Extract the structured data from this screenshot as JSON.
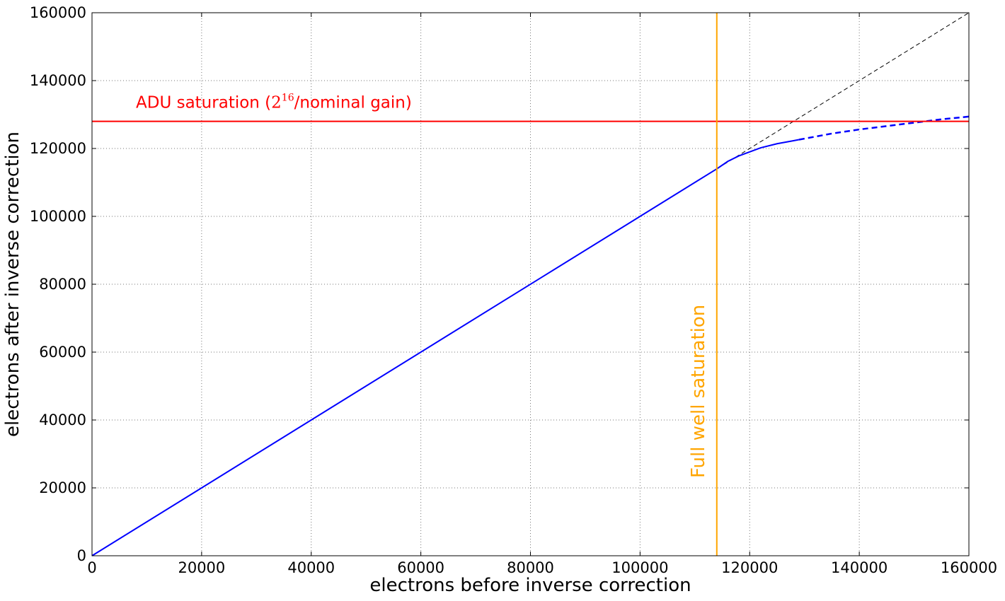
{
  "chart_data": {
    "type": "line",
    "title": "",
    "xlabel": "electrons before inverse correction",
    "ylabel": "electrons after inverse correction",
    "xlim": [
      0,
      160000
    ],
    "ylim": [
      0,
      160000
    ],
    "grid": true,
    "x_ticks": [
      "0",
      "20000",
      "40000",
      "60000",
      "80000",
      "100000",
      "120000",
      "140000",
      "160000"
    ],
    "y_ticks": [
      "0",
      "20000",
      "40000",
      "60000",
      "80000",
      "100000",
      "120000",
      "140000",
      "160000"
    ],
    "series": [
      {
        "style": "dashed-thin",
        "color": "#000000",
        "x": [
          0,
          160000
        ],
        "y": [
          0,
          160000
        ]
      },
      {
        "style": "solid",
        "color": "#0000ff",
        "x": [
          0,
          100000,
          114000,
          116000,
          118000,
          120000,
          122000,
          125000,
          128000,
          129000
        ],
        "y": [
          0,
          100000,
          114000,
          116200,
          117800,
          119000,
          120200,
          121400,
          122300,
          122600
        ]
      },
      {
        "style": "dashed",
        "color": "#0000ff",
        "x": [
          129000,
          135000,
          140000,
          145000,
          150000,
          155000,
          160000
        ],
        "y": [
          122600,
          124400,
          125600,
          126600,
          127600,
          128600,
          129400
        ]
      }
    ],
    "reference_lines": {
      "horizontal": {
        "y": 128000,
        "color": "#ff0000",
        "label_pre": "ADU saturation (",
        "label_math": "2",
        "label_sup": "16",
        "label_post": "/nominal gain)"
      },
      "vertical": {
        "x": 114000,
        "color": "#ffa500",
        "label": "Full well saturation"
      }
    }
  }
}
